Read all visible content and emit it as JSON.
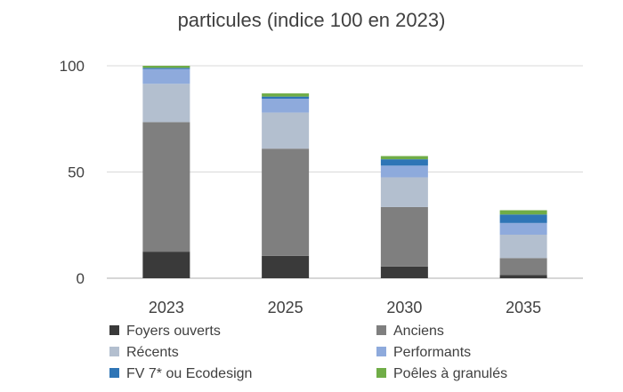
{
  "chart_data": {
    "type": "bar",
    "stacked": true,
    "title": "particules (indice 100 en 2023)",
    "xlabel": "",
    "ylabel": "",
    "categories": [
      "2023",
      "2025",
      "2030",
      "2035"
    ],
    "ylim": [
      0,
      100
    ],
    "yticks": [
      0,
      50,
      100
    ],
    "grid": true,
    "legend_position": "bottom",
    "series": [
      {
        "name": "Foyers ouverts",
        "color": "#3a3a3a",
        "values": [
          12.5,
          10.5,
          5.5,
          1.5
        ]
      },
      {
        "name": "Anciens",
        "color": "#7f7f7f",
        "values": [
          61,
          50.5,
          28,
          8
        ]
      },
      {
        "name": "Récents",
        "color": "#b3bfcf",
        "values": [
          18,
          17,
          14,
          11
        ]
      },
      {
        "name": "Performants",
        "color": "#8eaadc",
        "values": [
          7,
          6.5,
          5.5,
          5.5
        ]
      },
      {
        "name": "FV 7* ou Ecodesign",
        "color": "#2e75b6",
        "values": [
          0.5,
          1,
          3,
          4
        ]
      },
      {
        "name": "Poêles à granulés",
        "color": "#70ad47",
        "values": [
          1,
          1.5,
          1.5,
          2
        ]
      }
    ]
  }
}
